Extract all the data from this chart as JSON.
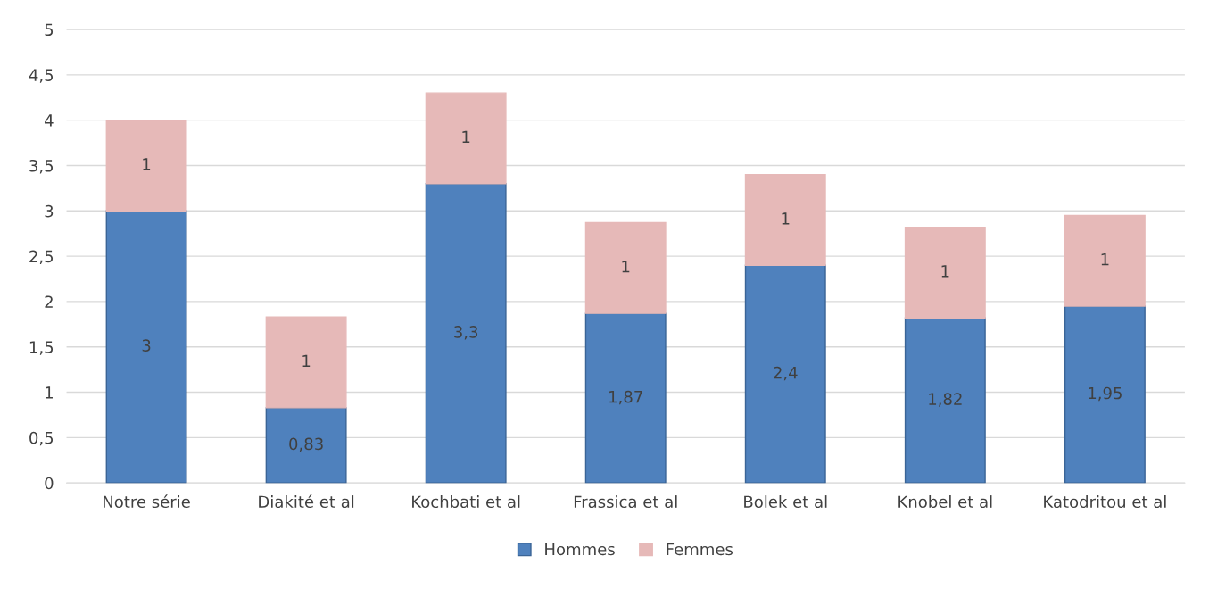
{
  "chart_data": {
    "type": "bar",
    "stacked": true,
    "categories": [
      "Notre série",
      "Diakité et al",
      "Kochbati et al",
      "Frassica et al",
      "Bolek et al",
      "Knobel et al",
      "Katodritou et al"
    ],
    "series": [
      {
        "name": "Hommes",
        "color": "#4f81bd",
        "values": [
          3,
          0.83,
          3.3,
          1.87,
          2.4,
          1.82,
          1.95
        ],
        "value_labels": [
          "3",
          "0,83",
          "3,3",
          "1,87",
          "2,4",
          "1,82",
          "1,95"
        ]
      },
      {
        "name": "Femmes",
        "color": "#e6b9b8",
        "values": [
          1,
          1,
          1,
          1,
          1,
          1,
          1
        ],
        "value_labels": [
          "1",
          "1",
          "1",
          "1",
          "1",
          "1",
          "1"
        ]
      }
    ],
    "ylim": [
      0,
      5
    ],
    "yticks": [
      0,
      {
        "value": 0.5,
        "label": "0,5"
      },
      1,
      {
        "value": 1.5,
        "label": "1,5"
      },
      2,
      {
        "value": 2.5,
        "label": "2,5"
      },
      3,
      {
        "value": 3.5,
        "label": "3,5"
      },
      4,
      {
        "value": 4.5,
        "label": "4,5"
      },
      5
    ],
    "grid": "y",
    "legend": "bottom"
  }
}
